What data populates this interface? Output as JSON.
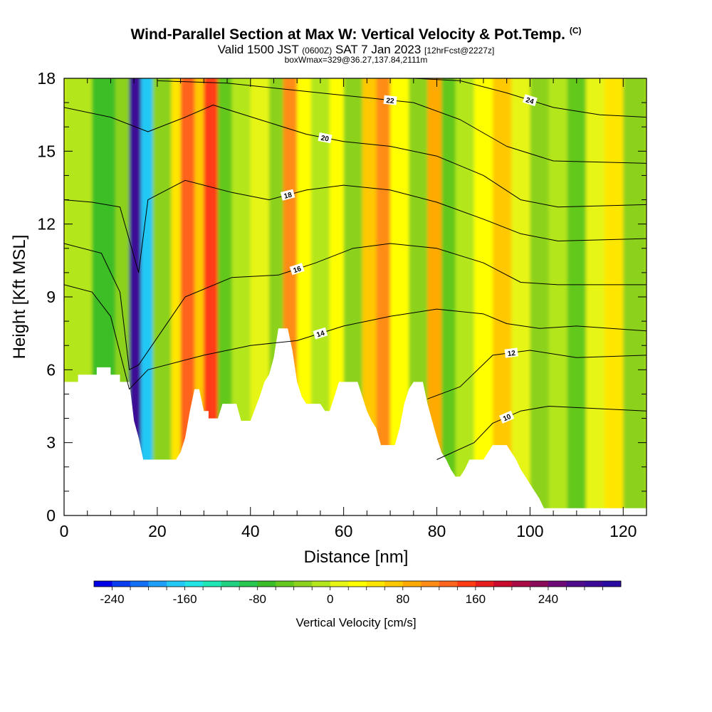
{
  "title": {
    "main": "Wind-Parallel Section at Max W: Vertical Velocity & Pot.Temp.",
    "copyright": "(C)",
    "valid_prefix": "Valid 1500 JST",
    "valid_utc": "(0600Z)",
    "valid_date": "SAT 7 Jan 2023",
    "forecast": "[12hrFcst@2227z]",
    "boxwmax": "boxWmax=329@36.27,137.84,2111m"
  },
  "chart_data": {
    "type": "contour",
    "xlabel": "Distance [nm]",
    "ylabel": "Height [Kft MSL]",
    "xlim": [
      0,
      125
    ],
    "ylim": [
      0,
      18
    ],
    "x_ticks": [
      0,
      20,
      40,
      60,
      80,
      100,
      120
    ],
    "y_ticks": [
      0,
      3,
      6,
      9,
      12,
      15,
      18
    ],
    "terrain": [
      [
        0,
        5.5
      ],
      [
        3,
        5.5
      ],
      [
        3,
        5.8
      ],
      [
        7,
        5.8
      ],
      [
        7,
        6.1
      ],
      [
        10,
        6.1
      ],
      [
        10,
        5.8
      ],
      [
        12,
        5.8
      ],
      [
        12,
        5.5
      ],
      [
        14,
        5.5
      ],
      [
        15,
        3.9
      ],
      [
        16,
        3.2
      ],
      [
        17,
        2.3
      ],
      [
        24,
        2.3
      ],
      [
        25,
        2.6
      ],
      [
        26,
        3.2
      ],
      [
        27,
        4.3
      ],
      [
        28,
        5.2
      ],
      [
        29,
        5.2
      ],
      [
        30,
        4.3
      ],
      [
        31,
        4.3
      ],
      [
        31,
        4.0
      ],
      [
        33,
        4.0
      ],
      [
        34,
        4.6
      ],
      [
        37,
        4.6
      ],
      [
        38,
        3.9
      ],
      [
        40,
        3.9
      ],
      [
        41,
        4.4
      ],
      [
        42,
        4.9
      ],
      [
        43,
        5.5
      ],
      [
        44,
        5.8
      ],
      [
        45,
        6.5
      ],
      [
        46,
        7.7
      ],
      [
        48,
        7.7
      ],
      [
        49,
        6.8
      ],
      [
        50,
        5.5
      ],
      [
        51,
        4.9
      ],
      [
        52,
        4.6
      ],
      [
        55,
        4.6
      ],
      [
        56,
        4.3
      ],
      [
        57,
        4.3
      ],
      [
        58,
        4.9
      ],
      [
        59,
        5.5
      ],
      [
        63,
        5.5
      ],
      [
        64,
        4.9
      ],
      [
        65,
        4.3
      ],
      [
        66,
        3.9
      ],
      [
        67,
        3.6
      ],
      [
        68,
        2.9
      ],
      [
        71,
        2.9
      ],
      [
        72,
        3.6
      ],
      [
        73,
        4.6
      ],
      [
        74,
        5.2
      ],
      [
        75,
        5.5
      ],
      [
        77,
        5.5
      ],
      [
        78,
        4.6
      ],
      [
        79,
        3.9
      ],
      [
        80,
        3.2
      ],
      [
        81,
        2.6
      ],
      [
        82,
        2.3
      ],
      [
        83,
        1.9
      ],
      [
        84,
        1.6
      ],
      [
        85,
        1.6
      ],
      [
        86,
        1.9
      ],
      [
        87,
        2.3
      ],
      [
        90,
        2.3
      ],
      [
        91,
        2.6
      ],
      [
        92,
        2.9
      ],
      [
        95,
        2.9
      ],
      [
        96,
        2.6
      ],
      [
        97,
        2.3
      ],
      [
        98,
        1.9
      ],
      [
        99,
        1.6
      ],
      [
        100,
        1.3
      ],
      [
        102,
        0.7
      ],
      [
        103,
        0.3
      ],
      [
        125,
        0.3
      ]
    ],
    "theta_contours": [
      {
        "label": "10",
        "points": [
          [
            80,
            2.3
          ],
          [
            88,
            3.0
          ],
          [
            92,
            3.8
          ],
          [
            98,
            4.3
          ],
          [
            104,
            4.5
          ],
          [
            125,
            4.3
          ]
        ]
      },
      {
        "label": "12",
        "points": [
          [
            78,
            4.8
          ],
          [
            85,
            5.3
          ],
          [
            92,
            6.6
          ],
          [
            100,
            6.8
          ],
          [
            110,
            6.5
          ],
          [
            125,
            6.6
          ]
        ]
      },
      {
        "label": "14",
        "points": [
          [
            0,
            9.5
          ],
          [
            6,
            9.2
          ],
          [
            10,
            8.2
          ],
          [
            14,
            5.2
          ],
          [
            18,
            6.0
          ],
          [
            30,
            6.6
          ],
          [
            40,
            7.0
          ],
          [
            50,
            7.2
          ],
          [
            60,
            7.8
          ],
          [
            70,
            8.2
          ],
          [
            80,
            8.5
          ],
          [
            90,
            8.3
          ],
          [
            95,
            7.9
          ],
          [
            102,
            7.7
          ],
          [
            110,
            7.8
          ],
          [
            125,
            7.6
          ]
        ]
      },
      {
        "label": "16",
        "points": [
          [
            0,
            11.2
          ],
          [
            8,
            10.8
          ],
          [
            12,
            9.2
          ],
          [
            14,
            6.0
          ],
          [
            16,
            6.2
          ],
          [
            26,
            9.0
          ],
          [
            36,
            9.8
          ],
          [
            46,
            9.9
          ],
          [
            54,
            10.4
          ],
          [
            62,
            11.0
          ],
          [
            70,
            11.2
          ],
          [
            80,
            11.0
          ],
          [
            90,
            10.4
          ],
          [
            98,
            9.6
          ],
          [
            106,
            9.5
          ],
          [
            125,
            9.5
          ]
        ]
      },
      {
        "label": "18",
        "points": [
          [
            0,
            13.0
          ],
          [
            6,
            12.9
          ],
          [
            12,
            12.7
          ],
          [
            16,
            10.0
          ],
          [
            18,
            13.0
          ],
          [
            26,
            13.8
          ],
          [
            36,
            13.3
          ],
          [
            44,
            13.0
          ],
          [
            52,
            13.4
          ],
          [
            60,
            13.6
          ],
          [
            70,
            13.4
          ],
          [
            80,
            12.9
          ],
          [
            90,
            12.2
          ],
          [
            98,
            11.6
          ],
          [
            106,
            11.3
          ],
          [
            125,
            11.4
          ]
        ]
      },
      {
        "label": "20",
        "points": [
          [
            0,
            16.8
          ],
          [
            10,
            16.4
          ],
          [
            18,
            15.8
          ],
          [
            26,
            16.4
          ],
          [
            32,
            16.9
          ],
          [
            42,
            16.3
          ],
          [
            52,
            15.7
          ],
          [
            60,
            15.4
          ],
          [
            70,
            15.2
          ],
          [
            80,
            14.8
          ],
          [
            90,
            14.0
          ],
          [
            98,
            13.0
          ],
          [
            106,
            12.7
          ],
          [
            125,
            12.8
          ]
        ]
      },
      {
        "label": "22",
        "points": [
          [
            20,
            17.9
          ],
          [
            35,
            17.8
          ],
          [
            45,
            17.6
          ],
          [
            55,
            17.4
          ],
          [
            65,
            17.2
          ],
          [
            75,
            17.0
          ],
          [
            85,
            16.3
          ],
          [
            95,
            15.2
          ],
          [
            105,
            14.6
          ],
          [
            125,
            14.5
          ]
        ]
      },
      {
        "label": "24",
        "points": [
          [
            75,
            18.0
          ],
          [
            85,
            17.9
          ],
          [
            95,
            17.4
          ],
          [
            105,
            16.8
          ],
          [
            115,
            16.5
          ],
          [
            125,
            16.4
          ]
        ]
      }
    ],
    "w_bands": [
      {
        "x": [
          0,
          6
        ],
        "w": -20
      },
      {
        "x": [
          6,
          11
        ],
        "w": -80
      },
      {
        "x": [
          11,
          14
        ],
        "w": -40
      },
      {
        "x": [
          14,
          16.5
        ],
        "w": 280
      },
      {
        "x": [
          16.5,
          19
        ],
        "w": -170
      },
      {
        "x": [
          19,
          23
        ],
        "w": -40
      },
      {
        "x": [
          23,
          25
        ],
        "w": 40
      },
      {
        "x": [
          25,
          28
        ],
        "w": 120
      },
      {
        "x": [
          28,
          30
        ],
        "w": 60
      },
      {
        "x": [
          30,
          33
        ],
        "w": 140
      },
      {
        "x": [
          33,
          36
        ],
        "w": -60
      },
      {
        "x": [
          36,
          40
        ],
        "w": -20
      },
      {
        "x": [
          40,
          44
        ],
        "w": 10
      },
      {
        "x": [
          44,
          47
        ],
        "w": -40
      },
      {
        "x": [
          47,
          50
        ],
        "w": 100
      },
      {
        "x": [
          50,
          53
        ],
        "w": 30
      },
      {
        "x": [
          53,
          57
        ],
        "w": -20
      },
      {
        "x": [
          57,
          60
        ],
        "w": 20
      },
      {
        "x": [
          60,
          64
        ],
        "w": -30
      },
      {
        "x": [
          64,
          67
        ],
        "w": 60
      },
      {
        "x": [
          67,
          70
        ],
        "w": 110
      },
      {
        "x": [
          70,
          74
        ],
        "w": 20
      },
      {
        "x": [
          74,
          78
        ],
        "w": -40
      },
      {
        "x": [
          78,
          81
        ],
        "w": 80
      },
      {
        "x": [
          81,
          84
        ],
        "w": -60
      },
      {
        "x": [
          84,
          88
        ],
        "w": -20
      },
      {
        "x": [
          88,
          92
        ],
        "w": 20
      },
      {
        "x": [
          92,
          96
        ],
        "w": 60
      },
      {
        "x": [
          96,
          100
        ],
        "w": 10
      },
      {
        "x": [
          100,
          104
        ],
        "w": -40
      },
      {
        "x": [
          104,
          108
        ],
        "w": -10
      },
      {
        "x": [
          108,
          112
        ],
        "w": -50
      },
      {
        "x": [
          112,
          116
        ],
        "w": 0
      },
      {
        "x": [
          116,
          120
        ],
        "w": 40
      },
      {
        "x": [
          120,
          125
        ],
        "w": -30
      }
    ],
    "colorbar": {
      "label": "Vertical Velocity [cm/s]",
      "min": -260,
      "max": 320,
      "step": 20,
      "tick_values": [
        -240,
        -160,
        -80,
        0,
        80,
        160,
        240
      ],
      "tick_labels": [
        "-240",
        "-160",
        "-80",
        "0",
        "80",
        "160",
        "240"
      ],
      "colors": [
        "#0000e6",
        "#0a3cf0",
        "#1470f5",
        "#1ea0f8",
        "#24c8f4",
        "#22e6e6",
        "#1ee6b4",
        "#1ed282",
        "#28c850",
        "#3cbe28",
        "#64c81e",
        "#8cd21e",
        "#b4e61e",
        "#e6f514",
        "#ffff00",
        "#ffe600",
        "#ffc800",
        "#ffaa00",
        "#ff8c14",
        "#ff641e",
        "#ff3c14",
        "#e61e1e",
        "#c80a2d",
        "#aa0a46",
        "#8c0a5a",
        "#6e0a78",
        "#500a8c",
        "#3c0a96",
        "#2a0aa0"
      ]
    }
  }
}
